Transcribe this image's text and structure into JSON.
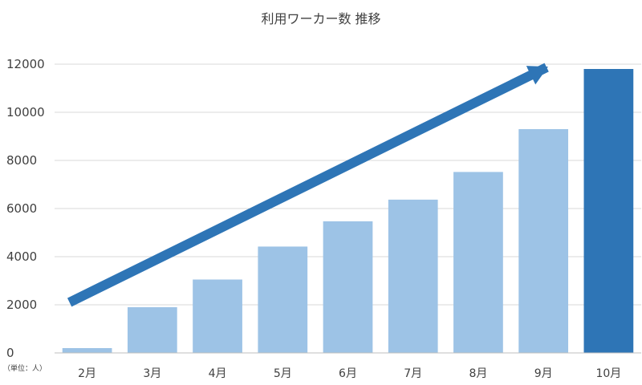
{
  "chart_data": {
    "type": "bar",
    "title": "利用ワーカー数 推移",
    "unit_note": "（単位：人）",
    "categories": [
      "2月",
      "3月",
      "4月",
      "5月",
      "6月",
      "7月",
      "8月",
      "9月",
      "10月"
    ],
    "values": [
      200,
      1900,
      3050,
      4420,
      5470,
      6370,
      7520,
      9300,
      11800
    ],
    "highlight_index": 8,
    "ylim": [
      0,
      12000
    ],
    "yticks": [
      0,
      2000,
      4000,
      6000,
      8000,
      10000,
      12000
    ],
    "grid": true,
    "legend": "none",
    "colors": {
      "bar": "#9dc3e6",
      "highlight": "#2e75b6",
      "arrow": "#2e75b6"
    },
    "annotations": [
      {
        "type": "trend-arrow",
        "from_category": "2月",
        "from_value": 2100,
        "to_category": "9月",
        "to_value": 12000
      }
    ]
  }
}
